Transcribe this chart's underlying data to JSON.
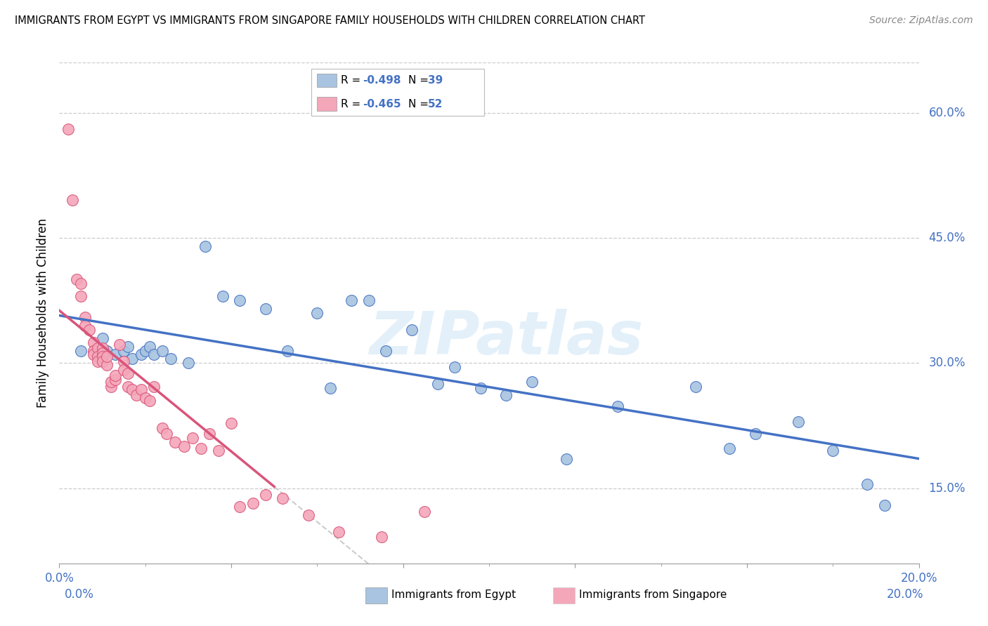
{
  "title": "IMMIGRANTS FROM EGYPT VS IMMIGRANTS FROM SINGAPORE FAMILY HOUSEHOLDS WITH CHILDREN CORRELATION CHART",
  "source": "Source: ZipAtlas.com",
  "ylabel": "Family Households with Children",
  "xlim": [
    0.0,
    0.2
  ],
  "ylim": [
    0.06,
    0.66
  ],
  "y_ticks_right": [
    0.15,
    0.3,
    0.45,
    0.6
  ],
  "y_tick_labels_right": [
    "15.0%",
    "30.0%",
    "45.0%",
    "60.0%"
  ],
  "x_ticks": [
    0.0,
    0.04,
    0.08,
    0.12,
    0.16,
    0.2
  ],
  "x_tick_labels": [
    "0.0%",
    "",
    "",
    "",
    "",
    "20.0%"
  ],
  "R_egypt": -0.498,
  "N_egypt": 39,
  "R_singapore": -0.465,
  "N_singapore": 52,
  "color_egypt": "#a8c4e0",
  "color_singapore": "#f4a7b9",
  "line_color_egypt": "#4472c4",
  "line_color_singapore": "#d9547a",
  "line_color_ext": "#cccccc",
  "watermark": "ZIPatlas",
  "egypt_x": [
    0.005,
    0.01,
    0.011,
    0.013,
    0.015,
    0.016,
    0.017,
    0.019,
    0.02,
    0.021,
    0.022,
    0.024,
    0.026,
    0.03,
    0.034,
    0.038,
    0.042,
    0.048,
    0.053,
    0.06,
    0.063,
    0.068,
    0.072,
    0.076,
    0.082,
    0.088,
    0.092,
    0.098,
    0.104,
    0.11,
    0.118,
    0.13,
    0.148,
    0.156,
    0.162,
    0.172,
    0.18,
    0.188,
    0.192
  ],
  "egypt_y": [
    0.315,
    0.33,
    0.315,
    0.31,
    0.315,
    0.32,
    0.305,
    0.31,
    0.315,
    0.32,
    0.31,
    0.315,
    0.305,
    0.3,
    0.44,
    0.38,
    0.375,
    0.365,
    0.315,
    0.36,
    0.27,
    0.375,
    0.375,
    0.315,
    0.34,
    0.275,
    0.295,
    0.27,
    0.262,
    0.278,
    0.185,
    0.248,
    0.272,
    0.198,
    0.215,
    0.23,
    0.195,
    0.155,
    0.13
  ],
  "singapore_x": [
    0.002,
    0.003,
    0.004,
    0.005,
    0.005,
    0.006,
    0.006,
    0.007,
    0.008,
    0.008,
    0.008,
    0.009,
    0.009,
    0.009,
    0.01,
    0.01,
    0.01,
    0.01,
    0.011,
    0.011,
    0.012,
    0.012,
    0.013,
    0.013,
    0.014,
    0.015,
    0.015,
    0.016,
    0.016,
    0.017,
    0.018,
    0.019,
    0.02,
    0.021,
    0.022,
    0.024,
    0.025,
    0.027,
    0.029,
    0.031,
    0.033,
    0.035,
    0.037,
    0.04,
    0.042,
    0.045,
    0.048,
    0.052,
    0.058,
    0.065,
    0.075,
    0.085
  ],
  "singapore_y": [
    0.58,
    0.495,
    0.4,
    0.395,
    0.38,
    0.355,
    0.345,
    0.34,
    0.325,
    0.315,
    0.31,
    0.318,
    0.308,
    0.302,
    0.318,
    0.312,
    0.308,
    0.302,
    0.298,
    0.308,
    0.272,
    0.278,
    0.28,
    0.285,
    0.322,
    0.302,
    0.292,
    0.288,
    0.272,
    0.268,
    0.262,
    0.268,
    0.258,
    0.255,
    0.272,
    0.222,
    0.215,
    0.205,
    0.2,
    0.21,
    0.198,
    0.215,
    0.195,
    0.228,
    0.128,
    0.132,
    0.142,
    0.138,
    0.118,
    0.098,
    0.092,
    0.122
  ]
}
